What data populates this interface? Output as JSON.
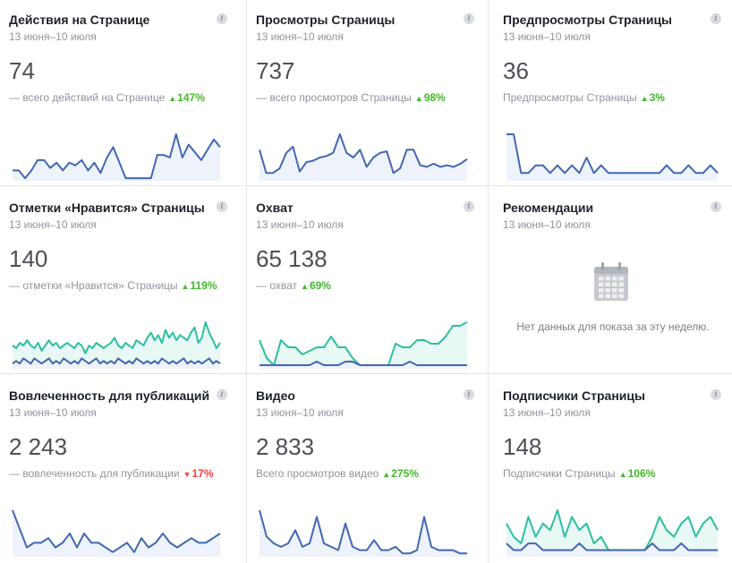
{
  "colors": {
    "blue": "#4267b2",
    "blue_fill": "#eef2fa",
    "teal": "#2bc0a0",
    "teal_fill": "#e8f8f4",
    "up": "#42b72a",
    "down": "#fa3e3e"
  },
  "cards": [
    {
      "title": "Действия на Странице",
      "date": "13 июня–10 июля",
      "value": "74",
      "sub": "— всего действий на Странице",
      "change": "147%",
      "trend": "up",
      "series": [
        {
          "color": "blue",
          "values": [
            4,
            4,
            1,
            4,
            8,
            8,
            5,
            7,
            4,
            7,
            6,
            8,
            4,
            7,
            3,
            9,
            13,
            7,
            1,
            1,
            1,
            1,
            1,
            10,
            10,
            9,
            18,
            9,
            14,
            11,
            8,
            12,
            16,
            13
          ]
        }
      ]
    },
    {
      "title": "Просмотры Страницы",
      "date": "13 июня–10 июля",
      "value": "737",
      "sub": "— всего просмотров Страницы",
      "change": "98%",
      "trend": "up",
      "series": [
        {
          "color": "blue",
          "values": [
            20,
            5,
            5,
            8,
            18,
            22,
            6,
            12,
            13,
            15,
            16,
            18,
            30,
            18,
            15,
            20,
            9,
            15,
            18,
            19,
            5,
            8,
            20,
            20,
            10,
            9,
            11,
            9,
            10,
            9,
            11,
            14
          ]
        }
      ]
    },
    {
      "title": "Предпросмотры Страницы",
      "date": "13 июня–10 июля",
      "value": "36",
      "sub": "Предпросмотры Страницы",
      "change": "3%",
      "trend": "up",
      "series": [
        {
          "color": "blue",
          "values": [
            6,
            6,
            1,
            1,
            2,
            2,
            1,
            2,
            1,
            2,
            1,
            3,
            1,
            2,
            1,
            1,
            1,
            1,
            1,
            1,
            1,
            1,
            2,
            1,
            1,
            2,
            1,
            1,
            2,
            1
          ]
        }
      ]
    },
    {
      "title": "Отметки «Нравится» Страницы",
      "date": "13 июня–10 июля",
      "value": "140",
      "sub": "— отметки «Нравится» Страницы",
      "change": "119%",
      "trend": "up",
      "series": [
        {
          "color": "teal",
          "values": [
            9,
            8,
            10,
            9,
            11,
            9,
            8,
            10,
            7,
            9,
            11,
            9,
            10,
            8,
            9,
            10,
            9,
            8,
            10,
            9,
            6,
            9,
            8,
            10,
            9,
            8,
            9,
            10,
            12,
            9,
            8,
            10,
            9,
            8,
            11,
            10,
            9,
            12,
            14,
            11,
            13,
            10,
            15,
            12,
            14,
            11,
            13,
            12,
            11,
            14,
            16,
            10,
            12,
            18,
            14,
            11,
            8,
            10
          ]
        },
        {
          "color": "blue",
          "values": [
            2,
            3,
            2,
            4,
            3,
            2,
            4,
            3,
            2,
            3,
            4,
            2,
            3,
            2,
            4,
            3,
            2,
            3,
            2,
            4,
            3,
            2,
            3,
            4,
            2,
            3,
            2,
            3,
            2,
            4,
            3,
            2,
            3,
            2,
            4,
            3,
            2,
            3,
            2,
            3,
            2,
            4,
            3,
            2,
            3,
            2,
            3,
            4,
            2,
            3,
            2,
            3,
            2,
            3,
            4,
            2,
            3,
            2
          ]
        }
      ]
    },
    {
      "title": "Охват",
      "date": "13 июня–10 июля",
      "value": "65 138",
      "sub": "— охват",
      "change": "69%",
      "trend": "up",
      "series": [
        {
          "color": "teal",
          "values": [
            8,
            3,
            1,
            8,
            6,
            6,
            4,
            5,
            6,
            6,
            9,
            6,
            6,
            3,
            1,
            1,
            1,
            1,
            1,
            7,
            6,
            6,
            8,
            8,
            7,
            7,
            9,
            12,
            12,
            13
          ]
        },
        {
          "color": "blue",
          "values": [
            1,
            1,
            1,
            1,
            1,
            1,
            1,
            1,
            2,
            1,
            1,
            1,
            2,
            2,
            1,
            1,
            1,
            1,
            1,
            1,
            1,
            2,
            1,
            1,
            1,
            1,
            1,
            1,
            1,
            1
          ]
        }
      ]
    },
    {
      "title": "Рекомендации",
      "date": "13 июня–10 июля",
      "empty": true,
      "empty_text": "Нет данных для показа за эту неделю."
    },
    {
      "title": "Вовлеченность для публикаций",
      "date": "13 июня–10 июля",
      "value": "2 243",
      "sub": "— вовлеченность для публикации",
      "change": "17%",
      "trend": "down",
      "series": [
        {
          "color": "blue",
          "values": [
            10,
            6,
            2,
            3,
            3,
            4,
            2,
            3,
            5,
            2,
            5,
            3,
            3,
            2,
            1,
            2,
            3,
            1,
            4,
            2,
            3,
            5,
            3,
            2,
            3,
            4,
            3,
            3,
            4,
            5
          ]
        }
      ]
    },
    {
      "title": "Видео",
      "date": "13 июня–10 июля",
      "value": "2 833",
      "sub": "Всего просмотров видео",
      "change": "275%",
      "trend": "up",
      "series": [
        {
          "color": "blue",
          "values": [
            14,
            6,
            4,
            3,
            4,
            8,
            3,
            4,
            12,
            4,
            3,
            2,
            10,
            3,
            2,
            2,
            5,
            2,
            2,
            3,
            1,
            1,
            2,
            12,
            3,
            2,
            2,
            2,
            1,
            1
          ]
        }
      ]
    },
    {
      "title": "Подписчики Страницы",
      "date": "13 июня–10 июля",
      "value": "148",
      "sub": "Подписчики Страницы",
      "change": "106%",
      "trend": "up",
      "series": [
        {
          "color": "teal",
          "values": [
            5,
            3,
            2,
            6,
            3,
            5,
            4,
            7,
            3,
            6,
            4,
            5,
            2,
            3,
            1,
            1,
            1,
            1,
            1,
            1,
            3,
            6,
            4,
            3,
            5,
            6,
            3,
            5,
            6,
            4
          ]
        },
        {
          "color": "blue",
          "values": [
            2,
            1,
            1,
            2,
            2,
            1,
            1,
            1,
            1,
            1,
            2,
            1,
            1,
            1,
            1,
            1,
            1,
            1,
            1,
            1,
            2,
            1,
            1,
            1,
            2,
            1,
            1,
            1,
            1,
            1
          ]
        }
      ]
    }
  ]
}
